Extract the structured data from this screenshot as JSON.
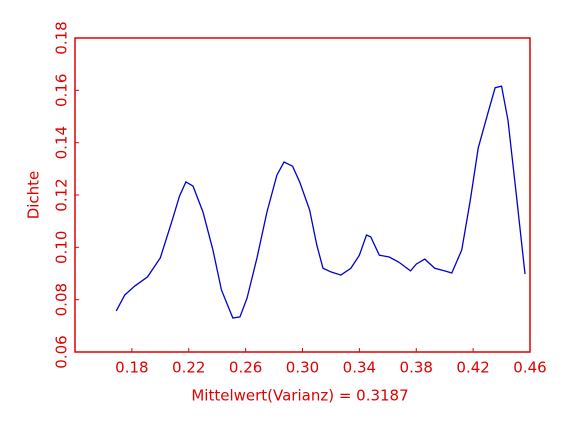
{
  "chart_data": {
    "type": "line",
    "xlabel": "Mittelwert(Varianz) = 0.3187",
    "ylabel": "Dichte",
    "axis_color": "#e00000",
    "series": [
      {
        "color": "#0000d0",
        "x": [
          0.169,
          0.175,
          0.182,
          0.191,
          0.2,
          0.208,
          0.2135,
          0.218,
          0.223,
          0.23,
          0.237,
          0.243,
          0.251,
          0.256,
          0.261,
          0.268,
          0.275,
          0.282,
          0.287,
          0.293,
          0.298,
          0.305,
          0.31,
          0.3144,
          0.32,
          0.327,
          0.334,
          0.34,
          0.345,
          0.348,
          0.354,
          0.361,
          0.3676,
          0.376,
          0.38,
          0.386,
          0.393,
          0.4,
          0.405,
          0.412,
          0.418,
          0.4236,
          0.4306,
          0.4355,
          0.44,
          0.4445,
          0.45,
          0.4565
        ],
        "values": [
          0.0757,
          0.0818,
          0.0852,
          0.0887,
          0.096,
          0.1097,
          0.1196,
          0.125,
          0.1234,
          0.1135,
          0.099,
          0.0837,
          0.073,
          0.0734,
          0.0806,
          0.096,
          0.1135,
          0.1276,
          0.1326,
          0.131,
          0.125,
          0.1143,
          0.101,
          0.092,
          0.0906,
          0.0894,
          0.092,
          0.097,
          0.1047,
          0.104,
          0.097,
          0.0963,
          0.0944,
          0.091,
          0.0936,
          0.0955,
          0.092,
          0.091,
          0.0902,
          0.099,
          0.118,
          0.138,
          0.1517,
          0.161,
          0.1616,
          0.1486,
          0.122,
          0.0898
        ]
      }
    ],
    "xlim": [
      0.14,
      0.46
    ],
    "ylim": [
      0.06,
      0.18
    ],
    "xticks": [
      0.18,
      0.22,
      0.26,
      {
        "value": 0.3,
        "label": "0.30"
      },
      0.34,
      0.38,
      0.42,
      0.46
    ],
    "yticks": [
      0.06,
      0.08,
      {
        "value": 0.1,
        "label": "0.10"
      },
      0.12,
      0.14,
      0.16,
      0.18
    ]
  }
}
